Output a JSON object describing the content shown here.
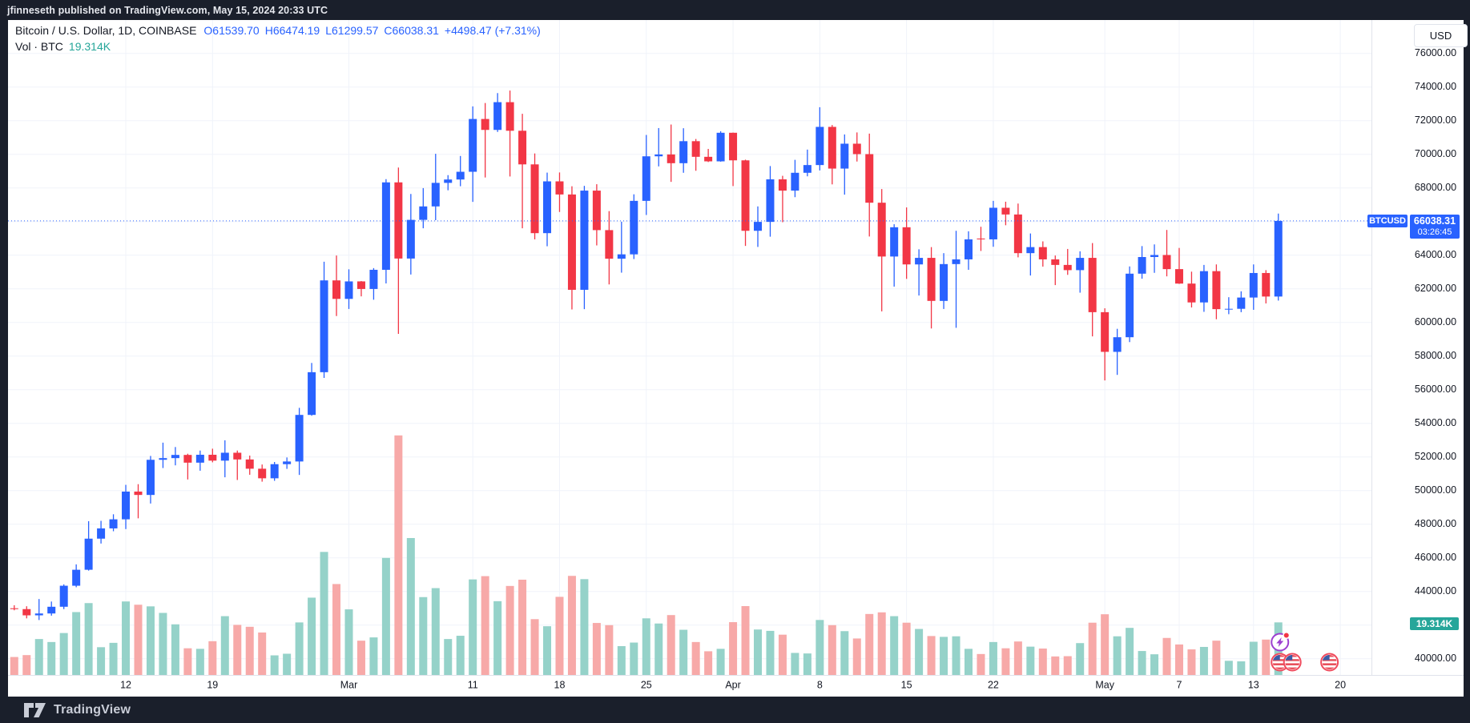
{
  "top_bar": {
    "text": "jfinneseth published on TradingView.com, May 15, 2024 20:33 UTC"
  },
  "legend": {
    "symbol_line": "Bitcoin / U.S. Dollar, 1D, COINBASE",
    "open": "O61539.70",
    "high": "H66474.19",
    "low": "L61299.57",
    "close": "C66038.31",
    "change": "+4498.47 (+7.31%)",
    "volume_label": "Vol · BTC",
    "volume_value": "19.314K"
  },
  "price_scale": {
    "currency_button": "USD",
    "symbol_badge": "BTCUSD",
    "last_price": "66038.31",
    "countdown": "03:26:45",
    "volume_badge": "19.314K"
  },
  "footer": {
    "logo_text": "TradingView"
  },
  "colors": {
    "up": "#2962ff",
    "down": "#f23645",
    "vol_up": "#95d2c9",
    "vol_down": "#f7a9a8",
    "grid": "#f0f3fa",
    "axis_border": "#e0e3eb",
    "text": "#131722",
    "teal": "#26a69a",
    "accent": "#2962ff",
    "marker_purple": "#9c3fd0",
    "marker_red_ring": "#f04a5c",
    "flag_red": "#e8505b",
    "flag_blue": "#3b5ba5"
  },
  "chart_data": {
    "type": "candlestick",
    "symbol": "Bitcoin / U.S. Dollar",
    "exchange": "COINBASE",
    "interval": "1D",
    "start_date": "2024-02-03",
    "title": "BTCUSD daily candles with volume",
    "y_axis": {
      "min": 40000,
      "max": 76000,
      "step": 2000,
      "side": "right",
      "currency": "USD"
    },
    "last_close_line": 66038.31,
    "volume_unit": "K BTC",
    "x_ticks": [
      {
        "label": "12",
        "day": 9
      },
      {
        "label": "19",
        "day": 16
      },
      {
        "label": "Mar",
        "day": 27
      },
      {
        "label": "11",
        "day": 37
      },
      {
        "label": "18",
        "day": 44
      },
      {
        "label": "25",
        "day": 51
      },
      {
        "label": "Apr",
        "day": 58
      },
      {
        "label": "8",
        "day": 65
      },
      {
        "label": "15",
        "day": 72
      },
      {
        "label": "22",
        "day": 79
      },
      {
        "label": "May",
        "day": 88
      },
      {
        "label": "7",
        "day": 94
      },
      {
        "label": "13",
        "day": 100
      },
      {
        "label": "20",
        "day": 107
      }
    ],
    "event_markers": {
      "idea_lightning": {
        "day": 102
      },
      "us_economic_flags": {
        "days": [
          102,
          103,
          106
        ]
      }
    },
    "candles": [
      [
        43000,
        43180,
        42880,
        42950,
        6.6
      ],
      [
        42950,
        43120,
        42400,
        42580,
        7.3
      ],
      [
        42580,
        43550,
        42300,
        42690,
        13.2
      ],
      [
        42690,
        43400,
        42560,
        43090,
        12.1
      ],
      [
        43090,
        44420,
        42950,
        44340,
        15.4
      ],
      [
        44340,
        45610,
        44250,
        45290,
        23.1
      ],
      [
        45290,
        48180,
        45240,
        47140,
        26.4
      ],
      [
        47140,
        48200,
        46850,
        47750,
        10.2
      ],
      [
        47750,
        48590,
        47580,
        48290,
        11.8
      ],
      [
        48290,
        50340,
        47710,
        49940,
        27.0
      ],
      [
        49940,
        50380,
        48350,
        49740,
        25.8
      ],
      [
        49740,
        52060,
        49230,
        51830,
        25.2
      ],
      [
        51830,
        52850,
        51340,
        51930,
        22.8
      ],
      [
        51930,
        52590,
        51500,
        52120,
        18.6
      ],
      [
        52120,
        52190,
        50660,
        51660,
        9.8
      ],
      [
        51660,
        52380,
        51180,
        52130,
        9.6
      ],
      [
        52130,
        52490,
        51680,
        51780,
        12.4
      ],
      [
        51780,
        52990,
        50790,
        52250,
        21.6
      ],
      [
        52250,
        52380,
        50630,
        51850,
        18.4
      ],
      [
        51850,
        52080,
        50940,
        51300,
        17.7
      ],
      [
        51300,
        51550,
        50530,
        50730,
        15.6
      ],
      [
        50730,
        51700,
        50580,
        51570,
        7.2
      ],
      [
        51570,
        51970,
        51290,
        51730,
        7.8
      ],
      [
        51730,
        54920,
        50930,
        54500,
        19.3
      ],
      [
        54500,
        57590,
        54450,
        57040,
        28.4
      ],
      [
        57040,
        63610,
        56700,
        62500,
        45.2
      ],
      [
        62500,
        63980,
        60380,
        61400,
        33.4
      ],
      [
        61400,
        63160,
        60800,
        62440,
        24.1
      ],
      [
        62440,
        62460,
        61550,
        61990,
        12.6
      ],
      [
        61990,
        63230,
        61350,
        63130,
        13.8
      ],
      [
        63130,
        68520,
        62320,
        68330,
        43.0
      ],
      [
        68330,
        69210,
        59320,
        63800,
        88.0
      ],
      [
        63800,
        67640,
        62850,
        66100,
        50.3
      ],
      [
        66100,
        67990,
        65600,
        66900,
        28.6
      ],
      [
        66900,
        70030,
        66080,
        68300,
        31.9
      ],
      [
        68300,
        68760,
        67860,
        68500,
        13.2
      ],
      [
        68500,
        69900,
        68100,
        68960,
        14.4
      ],
      [
        68960,
        72850,
        67170,
        72100,
        35.1
      ],
      [
        72100,
        73050,
        68620,
        71450,
        36.3
      ],
      [
        71450,
        73640,
        71330,
        73100,
        27.1
      ],
      [
        73100,
        73790,
        68680,
        71400,
        32.7
      ],
      [
        71400,
        72410,
        65600,
        69400,
        35.0
      ],
      [
        69400,
        70050,
        64940,
        65310,
        20.5
      ],
      [
        65310,
        68910,
        64530,
        68390,
        17.9
      ],
      [
        68390,
        68920,
        66570,
        67610,
        28.7
      ],
      [
        67610,
        68100,
        60770,
        61940,
        36.4
      ],
      [
        61940,
        68120,
        60790,
        67840,
        35.2
      ],
      [
        67840,
        68220,
        64580,
        65490,
        19.1
      ],
      [
        65490,
        66620,
        62260,
        63790,
        18.3
      ],
      [
        63790,
        65990,
        62960,
        64050,
        10.6
      ],
      [
        64050,
        67620,
        63770,
        67230,
        11.9
      ],
      [
        67230,
        71150,
        66390,
        69880,
        20.8
      ],
      [
        69880,
        71560,
        69280,
        69990,
        18.9
      ],
      [
        69990,
        71770,
        68360,
        69470,
        22.0
      ],
      [
        69470,
        71550,
        68900,
        70780,
        16.6
      ],
      [
        70780,
        70910,
        69020,
        69850,
        12.1
      ],
      [
        69850,
        70320,
        69540,
        69580,
        8.7
      ],
      [
        69580,
        71370,
        69560,
        71280,
        9.6
      ],
      [
        71280,
        71290,
        68110,
        69640,
        19.4
      ],
      [
        69640,
        69680,
        64550,
        65450,
        25.3
      ],
      [
        65450,
        66900,
        64490,
        65980,
        16.7
      ],
      [
        65980,
        69300,
        65100,
        68510,
        16.2
      ],
      [
        68510,
        68720,
        65960,
        67840,
        14.8
      ],
      [
        67840,
        69670,
        67450,
        68900,
        8.1
      ],
      [
        68900,
        70280,
        68690,
        69360,
        7.9
      ],
      [
        69360,
        72800,
        69040,
        71630,
        20.2
      ],
      [
        71630,
        71740,
        68210,
        69150,
        18.3
      ],
      [
        69150,
        71180,
        67600,
        70630,
        16.1
      ],
      [
        70630,
        71300,
        69570,
        70010,
        13.4
      ],
      [
        70010,
        71230,
        65110,
        67120,
        22.4
      ],
      [
        67120,
        67930,
        60660,
        63920,
        23.0
      ],
      [
        63920,
        65840,
        62130,
        65660,
        21.6
      ],
      [
        65660,
        66840,
        62590,
        63450,
        19.2
      ],
      [
        63450,
        64350,
        61600,
        63840,
        16.9
      ],
      [
        63840,
        64480,
        59640,
        61280,
        14.3
      ],
      [
        61280,
        64120,
        60800,
        63470,
        14.0
      ],
      [
        63470,
        65450,
        59680,
        63750,
        14.2
      ],
      [
        63750,
        65420,
        63130,
        64940,
        9.6
      ],
      [
        64990,
        65690,
        64250,
        64940,
        7.7
      ],
      [
        64940,
        67230,
        64500,
        66820,
        12.1
      ],
      [
        66820,
        67180,
        65780,
        66420,
        9.8
      ],
      [
        66420,
        67070,
        63870,
        64120,
        12.3
      ],
      [
        64120,
        65290,
        62790,
        64480,
        10.4
      ],
      [
        64480,
        64820,
        63320,
        63750,
        9.7
      ],
      [
        63750,
        63980,
        62220,
        63420,
        6.8
      ],
      [
        63420,
        64370,
        62830,
        63110,
        6.9
      ],
      [
        63110,
        64230,
        61770,
        63840,
        11.7
      ],
      [
        63840,
        64720,
        59170,
        60610,
        19.2
      ],
      [
        60610,
        60840,
        56550,
        58250,
        22.3
      ],
      [
        58250,
        59620,
        56880,
        59120,
        14.2
      ],
      [
        59120,
        63330,
        58830,
        62900,
        17.3
      ],
      [
        62900,
        64540,
        62600,
        63890,
        8.8
      ],
      [
        63890,
        64640,
        62950,
        64010,
        7.6
      ],
      [
        64010,
        65500,
        62740,
        63170,
        13.6
      ],
      [
        63170,
        64430,
        62290,
        62310,
        11.2
      ],
      [
        62310,
        63020,
        60890,
        61190,
        9.4
      ],
      [
        61190,
        63420,
        60630,
        63050,
        10.3
      ],
      [
        63050,
        63450,
        60190,
        60790,
        12.6
      ],
      [
        60790,
        61500,
        60490,
        60810,
        5.2
      ],
      [
        60810,
        61850,
        60610,
        61480,
        5.0
      ],
      [
        61480,
        63450,
        60750,
        62940,
        12.2
      ],
      [
        62940,
        63110,
        61130,
        61540,
        13.0
      ],
      [
        61539.7,
        66474.19,
        61299.57,
        66038.31,
        19.314
      ]
    ]
  }
}
